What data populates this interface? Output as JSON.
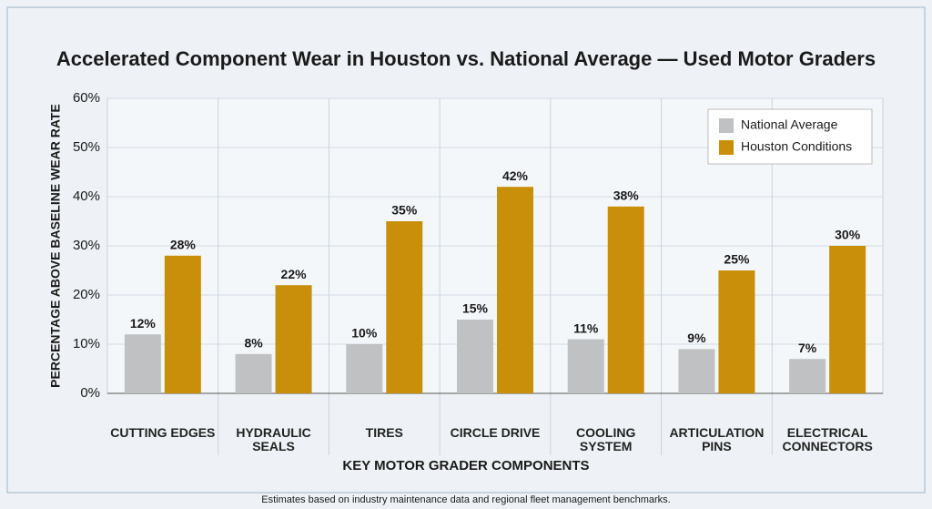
{
  "chart_data": {
    "type": "grouped-bar",
    "title": "Accelerated Component Wear in Houston vs. National Average — Used Motor Graders",
    "y_label": "PERCENTAGE ABOVE BASELINE WEAR RATE",
    "x_label": "KEY MOTOR GRADER COMPONENTS",
    "footnote": "Estimates based on industry maintenance data and regional fleet management benchmarks.",
    "categories": [
      "CUTTING EDGES",
      "HYDRAULIC SEALS",
      "TIRES",
      "CIRCLE DRIVE",
      "COOLING SYSTEM",
      "ARTICULATION PINS",
      "ELECTRICAL CONNECTORS"
    ],
    "series": [
      {
        "name": "National Average",
        "color": "#bfc1c3",
        "values": [
          12,
          8,
          10,
          15,
          11,
          9,
          7
        ],
        "value_labels": [
          "12%",
          "8%",
          "10%",
          "15%",
          "11%",
          "9%",
          "7%"
        ]
      },
      {
        "name": "Houston Conditions",
        "color": "#c98f0a",
        "values": [
          28,
          22,
          35,
          42,
          38,
          25,
          30
        ],
        "value_labels": [
          "28%",
          "22%",
          "35%",
          "42%",
          "38%",
          "25%",
          "30%"
        ]
      }
    ],
    "ylim": [
      0,
      60
    ],
    "yticks": [
      {
        "value": 0,
        "label": "0%"
      },
      {
        "value": 10,
        "label": "10%"
      },
      {
        "value": 20,
        "label": "20%"
      },
      {
        "value": 30,
        "label": "30%"
      },
      {
        "value": 40,
        "label": "40%"
      },
      {
        "value": 50,
        "label": "50%"
      },
      {
        "value": 60,
        "label": "60%"
      }
    ],
    "grid": true,
    "legend": "upper right"
  }
}
